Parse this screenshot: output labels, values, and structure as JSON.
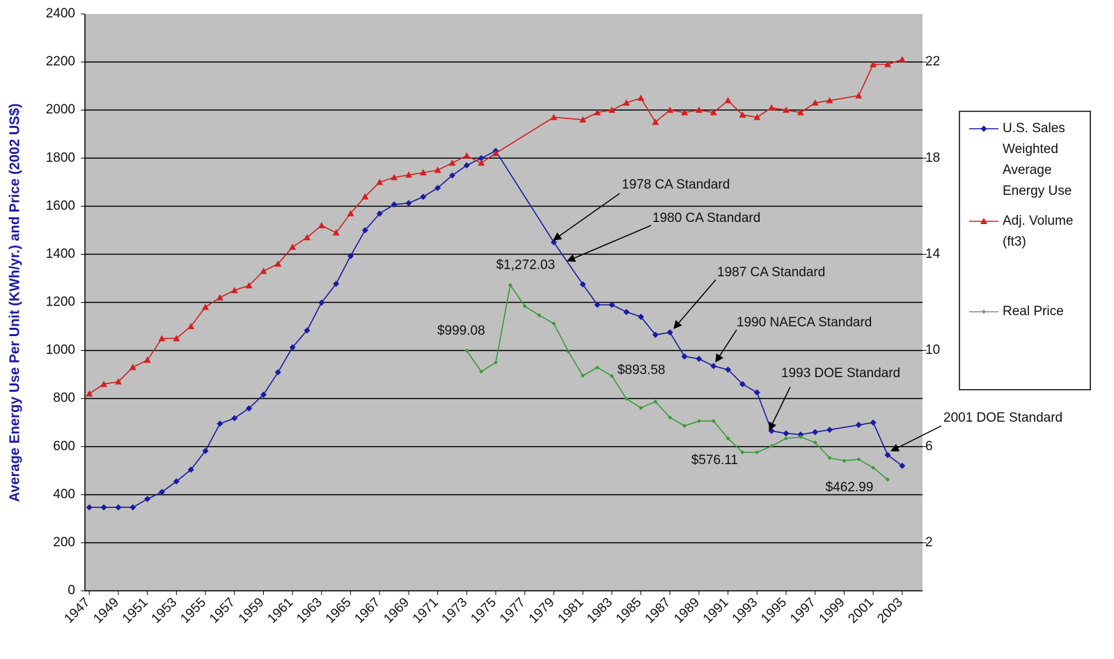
{
  "chart_data": {
    "type": "line",
    "ylabel": "Average Energy Use Per Unit (KWh/yr.) and Price (2002 US$)",
    "xlim": [
      1946.7,
      2004.4
    ],
    "xticks": [
      1947,
      1949,
      1951,
      1953,
      1955,
      1957,
      1959,
      1961,
      1963,
      1965,
      1967,
      1969,
      1971,
      1973,
      1975,
      1977,
      1979,
      1981,
      1983,
      1985,
      1987,
      1989,
      1991,
      1993,
      1995,
      1997,
      1999,
      2001,
      2003
    ],
    "ylim": [
      0,
      2400
    ],
    "yticks": [
      0,
      200,
      400,
      600,
      800,
      1000,
      1200,
      1400,
      1600,
      1800,
      2000,
      2200,
      2400
    ],
    "y2lim": [
      0,
      24
    ],
    "y2ticks": [
      2,
      6,
      10,
      14,
      18,
      22
    ],
    "grid": true,
    "legend": "right",
    "series": [
      {
        "name": "U.S. Sales Weighted Average Energy Use",
        "color": "#1a1aa6",
        "marker": "diamond",
        "x": [
          1947,
          1948,
          1949,
          1950,
          1951,
          1952,
          1953,
          1954,
          1955,
          1956,
          1957,
          1958,
          1959,
          1960,
          1961,
          1962,
          1963,
          1964,
          1965,
          1966,
          1967,
          1968,
          1969,
          1970,
          1971,
          1972,
          1973,
          1974,
          1975,
          1979,
          1981,
          1982,
          1983,
          1984,
          1985,
          1986,
          1987,
          1988,
          1989,
          1990,
          1991,
          1992,
          1993,
          1994,
          1995,
          1996,
          1997,
          1998,
          2000,
          2001,
          2002,
          2003
        ],
        "values": [
          347,
          347,
          347,
          347,
          382,
          411,
          455,
          504,
          582,
          695,
          718,
          759,
          816,
          909,
          1013,
          1083,
          1199,
          1277,
          1393,
          1500,
          1569,
          1607,
          1613,
          1639,
          1676,
          1728,
          1770,
          1800,
          1830,
          1450,
          1275,
          1190,
          1190,
          1160,
          1140,
          1065,
          1075,
          975,
          965,
          935,
          920,
          860,
          825,
          665,
          655,
          650,
          660,
          670,
          690,
          700,
          565,
          520
        ]
      },
      {
        "name": "Adj. Volume (ft3)",
        "color": "#d42020",
        "marker": "triangle",
        "axis": "y2",
        "x": [
          1947,
          1948,
          1949,
          1950,
          1951,
          1952,
          1953,
          1954,
          1955,
          1956,
          1957,
          1958,
          1959,
          1960,
          1961,
          1962,
          1963,
          1964,
          1965,
          1966,
          1967,
          1968,
          1969,
          1970,
          1971,
          1972,
          1973,
          1974,
          1975,
          1979,
          1981,
          1982,
          1983,
          1984,
          1985,
          1986,
          1987,
          1988,
          1989,
          1990,
          1991,
          1992,
          1993,
          1994,
          1995,
          1996,
          1997,
          1998,
          2000,
          2001,
          2002,
          2003
        ],
        "values": [
          8.2,
          8.6,
          8.7,
          9.3,
          9.6,
          10.5,
          10.5,
          11.0,
          11.8,
          12.2,
          12.5,
          12.7,
          13.3,
          13.6,
          14.3,
          14.7,
          15.2,
          14.9,
          15.7,
          16.4,
          17.0,
          17.2,
          17.3,
          17.4,
          17.5,
          17.8,
          18.1,
          17.8,
          18.2,
          19.7,
          19.6,
          19.9,
          20.0,
          20.3,
          20.5,
          19.5,
          20.0,
          19.9,
          20.0,
          19.9,
          20.4,
          19.8,
          19.7,
          20.1,
          20.0,
          19.9,
          20.3,
          20.4,
          20.6,
          21.9,
          21.9,
          22.1
        ]
      },
      {
        "name": "Real Price",
        "color": "#3a9a3a",
        "marker": "small-diamond",
        "x": [
          1973,
          1974,
          1975,
          1976,
          1977,
          1978,
          1979,
          1980,
          1981,
          1982,
          1983,
          1984,
          1985,
          1986,
          1987,
          1988,
          1989,
          1990,
          1991,
          1992,
          1993,
          1994,
          1995,
          1996,
          1997,
          1998,
          1999,
          2000,
          2001,
          2002
        ],
        "values": [
          999.08,
          912,
          950,
          1272.03,
          1184,
          1146,
          1112,
          996,
          895,
          929,
          893.58,
          799,
          761,
          787,
          721,
          686,
          706,
          706,
          634,
          576.11,
          576,
          602,
          634,
          640,
          617,
          553,
          541,
          547,
          512,
          462.99
        ],
        "value_labels": [
          "$999.08",
          null,
          null,
          "$1,272.03",
          null,
          null,
          null,
          null,
          null,
          null,
          "$893.58",
          null,
          null,
          null,
          null,
          null,
          null,
          null,
          null,
          "$576.11",
          null,
          null,
          null,
          null,
          null,
          null,
          null,
          null,
          null,
          "$462.99"
        ]
      }
    ],
    "annotations": [
      "1978 CA Standard",
      "1980 CA Standard",
      "1987 CA Standard",
      "1990 NAECA Standard",
      "1993 DOE Standard",
      "2001 DOE Standard"
    ]
  }
}
